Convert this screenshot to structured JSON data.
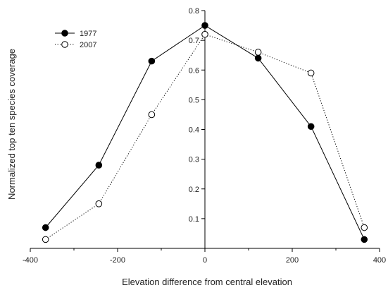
{
  "chart_data": {
    "type": "line",
    "xlabel": "Elevation difference from central elevation",
    "ylabel": "Normalized top ten species coverage",
    "xlim": [
      -400,
      400
    ],
    "ylim": [
      0,
      0.8
    ],
    "x_ticks": [
      -400,
      -200,
      0,
      200,
      400
    ],
    "x_tick_labels": [
      "-400",
      "-200",
      "0",
      "200",
      "400"
    ],
    "y_ticks": [
      0.1,
      0.2,
      0.3,
      0.4,
      0.5,
      0.6,
      0.7,
      0.8
    ],
    "y_tick_labels": [
      "0.1",
      "0.2",
      "0.3",
      "0.4",
      "0.5",
      "0.6",
      "0.7",
      "0.8"
    ],
    "legend_position": "top-left",
    "grid": false,
    "series": [
      {
        "name": "1977",
        "style": "solid",
        "marker": "filled-circle",
        "color": "#000000",
        "x": [
          -365,
          -243,
          -122,
          0,
          122,
          243,
          365
        ],
        "y": [
          0.07,
          0.28,
          0.63,
          0.75,
          0.64,
          0.41,
          0.03
        ]
      },
      {
        "name": "2007",
        "style": "dotted",
        "marker": "open-circle",
        "color": "#000000",
        "x": [
          -365,
          -243,
          -122,
          0,
          122,
          243,
          365
        ],
        "y": [
          0.03,
          0.15,
          0.45,
          0.72,
          0.66,
          0.59,
          0.07
        ]
      }
    ]
  }
}
